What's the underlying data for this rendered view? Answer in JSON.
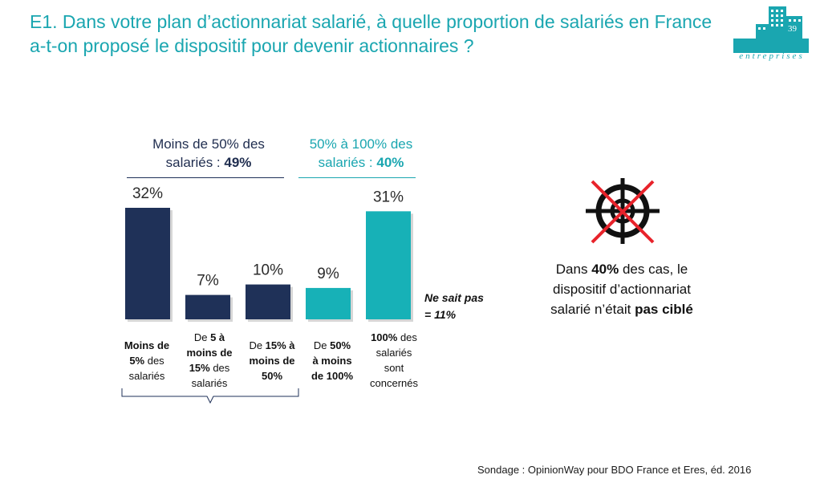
{
  "title": "E1. Dans votre plan d’actionnariat salarié, à quelle proportion de salariés en France a-t-on proposé le dispositif pour devenir actionnaires ?",
  "logo": {
    "number": "39",
    "text": "entreprises",
    "icon": "buildings-icon"
  },
  "groups": [
    {
      "line1": "Moins de 50% des",
      "line2_prefix": "salariés : ",
      "line2_value": "49%"
    },
    {
      "line1": "50% à 100% des",
      "line2_prefix": "salariés : ",
      "line2_value": "40%"
    }
  ],
  "categories": [
    {
      "p1_bold": "Moins de",
      "p2_bold": "5%",
      "p2_rest": " des",
      "p3": "salariés"
    },
    {
      "p1_pre": "De ",
      "p1_bold": "5 à",
      "p2_bold": "moins de",
      "p3_bold": "15%",
      "p3_rest": " des",
      "p4": "salariés"
    },
    {
      "p1_pre": "De ",
      "p1_bold": "15% à",
      "p2_bold": "moins de",
      "p3_bold": "50%"
    },
    {
      "p1": "De ",
      "p1_bold": "50%",
      "p2_bold": "à moins",
      "p3_bold": "de 100%"
    },
    {
      "p1_bold": "100%",
      "p1_rest": " des",
      "p2": "salariés",
      "p3": "sont",
      "p4": "concernés"
    }
  ],
  "no_answer": {
    "line1": "Ne sait pas",
    "line2": "= 11%"
  },
  "note": {
    "pre": "Dans ",
    "bold1": "40%",
    "mid": " des cas, le dispositif d’actionnariat salarié n’était ",
    "bold2": "pas ciblé"
  },
  "source": "Sondage : OpinionWay pour BDO France et Eres, éd. 2016",
  "colors": {
    "navy": "#1f3158",
    "teal": "#17b1b7",
    "title": "#1aa6b0",
    "cross": "#e8232b"
  },
  "chart_data": {
    "type": "bar",
    "categories": [
      "Moins de 5% des salariés",
      "De 5 à moins de 15% des salariés",
      "De 15% à moins de 50%",
      "De 50% à moins de 100%",
      "100% des salariés sont concernés"
    ],
    "values": [
      32,
      7,
      10,
      9,
      31
    ],
    "value_labels": [
      "32%",
      "7%",
      "10%",
      "9%",
      "31%"
    ],
    "bar_colors": [
      "#1f3158",
      "#1f3158",
      "#1f3158",
      "#17b1b7",
      "#17b1b7"
    ],
    "ylim": [
      0,
      32
    ]
  }
}
